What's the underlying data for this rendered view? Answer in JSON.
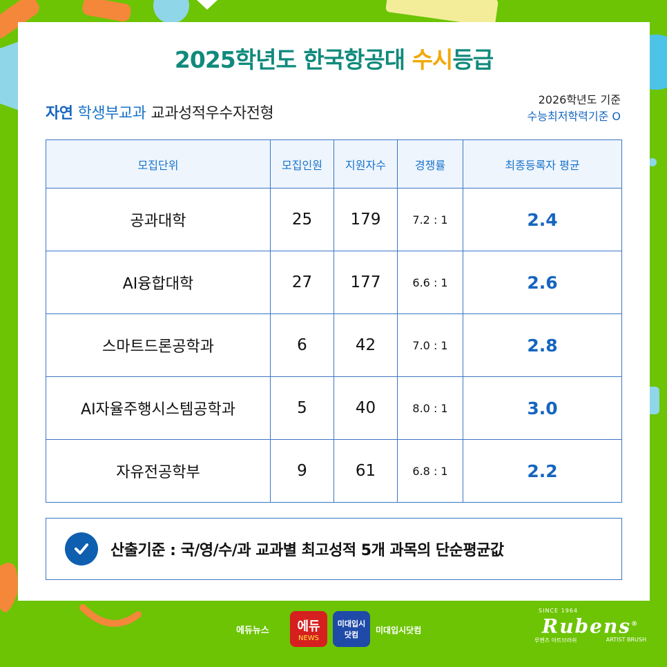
{
  "title": {
    "prefix": "2025학년도 한국항공대 ",
    "highlight": "수시",
    "suffix": "등급"
  },
  "subtitle": {
    "part1": "자연",
    "part2": "학생부교과",
    "part3": "교과성적우수자전형"
  },
  "note": {
    "line1": "2026학년도 기준",
    "line2": "수능최저학력기준 O"
  },
  "table": {
    "headers": [
      "모집단위",
      "모집인원",
      "지원자수",
      "경쟁률",
      "최종등록자 평균"
    ],
    "rows": [
      {
        "name": "공과대학",
        "quota": "25",
        "applicants": "179",
        "ratio": "7.2 : 1",
        "grade": "2.4"
      },
      {
        "name": "AI융합대학",
        "quota": "27",
        "applicants": "177",
        "ratio": "6.6 : 1",
        "grade": "2.6"
      },
      {
        "name": "스마트드론공학과",
        "quota": "6",
        "applicants": "42",
        "ratio": "7.0 : 1",
        "grade": "2.8"
      },
      {
        "name": "AI자율주행시스템공학과",
        "quota": "5",
        "applicants": "40",
        "ratio": "8.0 : 1",
        "grade": "3.0"
      },
      {
        "name": "자유전공학부",
        "quota": "9",
        "applicants": "61",
        "ratio": "6.8 : 1",
        "grade": "2.2"
      }
    ]
  },
  "criteria": {
    "text": "산출기준 : 국/영/수/과 교과별 최고성적 5개 과목의 단순평균값",
    "icon": "check-circle-icon"
  },
  "footer": {
    "edu_news": "에듀뉴스",
    "logo1_top": "에듀",
    "logo1_bottom": "NEWS",
    "logo2_top": "미대입시",
    "logo2_bottom": "닷컴",
    "midae": "미대입시닷컴",
    "brand_since": "SINCE 1964",
    "brand_name": "Rubens",
    "brand_reg": "®",
    "brand_kor": "루벤즈 아트브러쉬",
    "brand_sub": "ARTIST BRUSH"
  },
  "colors": {
    "background": "#6cc404",
    "title_teal": "#0f8a7c",
    "title_highlight": "#f2a90a",
    "accent_blue": "#1565c0",
    "table_border": "#3a75c4",
    "header_bg": "#eef5fd"
  }
}
